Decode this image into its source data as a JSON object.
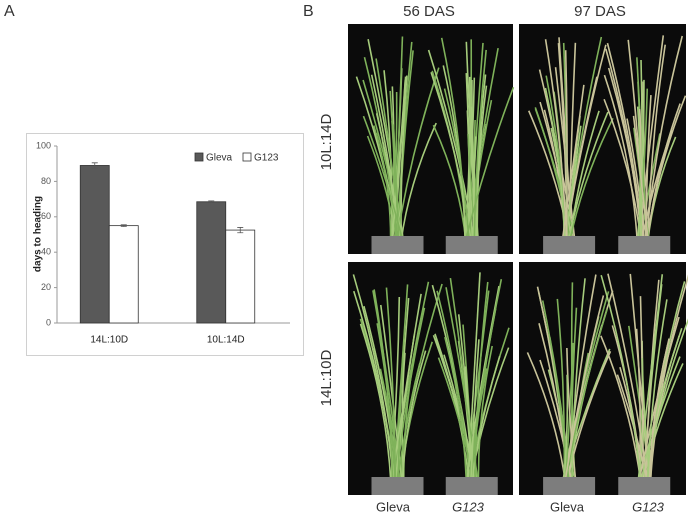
{
  "chart_data": {
    "type": "bar",
    "ylabel": "days to heading",
    "categories": [
      "14L:10D",
      "10L:14D"
    ],
    "series": [
      {
        "name": "Gleva",
        "color": "#595959",
        "values": [
          89,
          68.5
        ],
        "errors": [
          1.5,
          0.5
        ]
      },
      {
        "name": "G123",
        "color": "#ffffff",
        "values": [
          55,
          52.5
        ],
        "errors": [
          0.5,
          1.5
        ]
      }
    ],
    "ylim": [
      0,
      100
    ],
    "yticks": [
      0,
      20,
      40,
      60,
      80,
      100
    ],
    "legend": "top-right"
  },
  "figure": {
    "panel_a": "A",
    "panel_b": "B",
    "columns": [
      "56 DAS",
      "97 DAS"
    ],
    "rows": [
      "10L:14D",
      "14L:10D"
    ],
    "genotypes": [
      "Gleva",
      "G123",
      "Gleva",
      "G123"
    ]
  }
}
